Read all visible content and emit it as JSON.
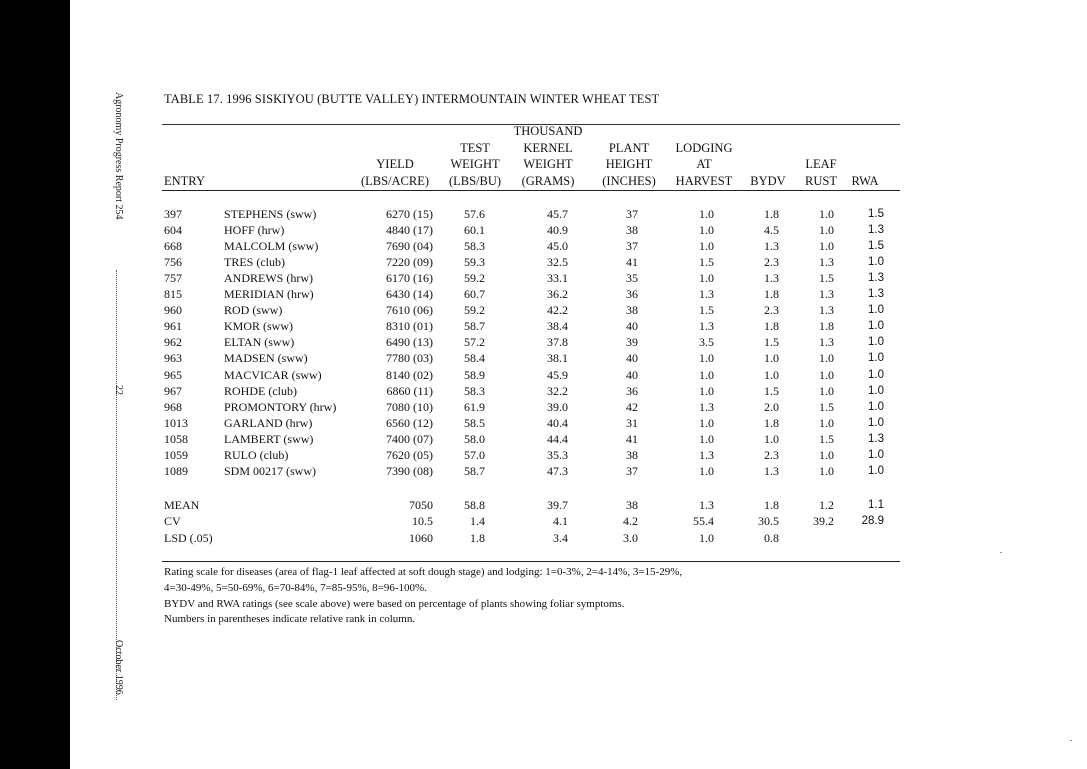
{
  "side": {
    "report": "Agronomy Progress Report 254",
    "page": "22",
    "date": "October 1996"
  },
  "title": "TABLE 17.  1996 SISKIYOU (BUTTE VALLEY) INTERMOUNTAIN WINTER WHEAT TEST",
  "headers": {
    "entry": [
      "ENTRY"
    ],
    "yield": [
      "YIELD",
      "(LBS/ACRE)"
    ],
    "testwt": [
      "TEST",
      "WEIGHT",
      "(LBS/BU)"
    ],
    "tkw": [
      "THOUSAND",
      "KERNEL",
      "WEIGHT",
      "(GRAMS)"
    ],
    "height": [
      "PLANT",
      "HEIGHT",
      "(INCHES)"
    ],
    "lodging": [
      "LODGING",
      "AT",
      "HARVEST"
    ],
    "bydv": [
      "BYDV"
    ],
    "rust": [
      "LEAF",
      "RUST"
    ],
    "rwa": [
      "RWA"
    ]
  },
  "rows": [
    {
      "entry": "397",
      "name": "STEPHENS (sww)",
      "yield": "6270 (15)",
      "testwt": "57.6",
      "tkw": "45.7",
      "height": "37",
      "lodging": "1.0",
      "bydv": "1.8",
      "rust": "1.0",
      "rwa": "1.5"
    },
    {
      "entry": "604",
      "name": "HOFF (hrw)",
      "yield": "4840 (17)",
      "testwt": "60.1",
      "tkw": "40.9",
      "height": "38",
      "lodging": "1.0",
      "bydv": "4.5",
      "rust": "1.0",
      "rwa": "1.3"
    },
    {
      "entry": "668",
      "name": "MALCOLM (sww)",
      "yield": "7690 (04)",
      "testwt": "58.3",
      "tkw": "45.0",
      "height": "37",
      "lodging": "1.0",
      "bydv": "1.3",
      "rust": "1.0",
      "rwa": "1.5"
    },
    {
      "entry": "756",
      "name": "TRES (club)",
      "yield": "7220 (09)",
      "testwt": "59.3",
      "tkw": "32.5",
      "height": "41",
      "lodging": "1.5",
      "bydv": "2.3",
      "rust": "1.3",
      "rwa": "1.0"
    },
    {
      "entry": "757",
      "name": "ANDREWS (hrw)",
      "yield": "6170 (16)",
      "testwt": "59.2",
      "tkw": "33.1",
      "height": "35",
      "lodging": "1.0",
      "bydv": "1.3",
      "rust": "1.5",
      "rwa": "1.3"
    },
    {
      "entry": "815",
      "name": "MERIDIAN (hrw)",
      "yield": "6430 (14)",
      "testwt": "60.7",
      "tkw": "36.2",
      "height": "36",
      "lodging": "1.3",
      "bydv": "1.8",
      "rust": "1.3",
      "rwa": "1.3"
    },
    {
      "entry": "960",
      "name": "ROD (sww)",
      "yield": "7610 (06)",
      "testwt": "59.2",
      "tkw": "42.2",
      "height": "38",
      "lodging": "1.5",
      "bydv": "2.3",
      "rust": "1.3",
      "rwa": "1.0"
    },
    {
      "entry": "961",
      "name": "KMOR (sww)",
      "yield": "8310 (01)",
      "testwt": "58.7",
      "tkw": "38.4",
      "height": "40",
      "lodging": "1.3",
      "bydv": "1.8",
      "rust": "1.8",
      "rwa": "1.0"
    },
    {
      "entry": "962",
      "name": "ELTAN (sww)",
      "yield": "6490 (13)",
      "testwt": "57.2",
      "tkw": "37.8",
      "height": "39",
      "lodging": "3.5",
      "bydv": "1.5",
      "rust": "1.3",
      "rwa": "1.0"
    },
    {
      "entry": "963",
      "name": "MADSEN (sww)",
      "yield": "7780 (03)",
      "testwt": "58.4",
      "tkw": "38.1",
      "height": "40",
      "lodging": "1.0",
      "bydv": "1.0",
      "rust": "1.0",
      "rwa": "1.0"
    },
    {
      "entry": "965",
      "name": "MACVICAR (sww)",
      "yield": "8140 (02)",
      "testwt": "58.9",
      "tkw": "45.9",
      "height": "40",
      "lodging": "1.0",
      "bydv": "1.0",
      "rust": "1.0",
      "rwa": "1.0"
    },
    {
      "entry": "967",
      "name": "ROHDE (club)",
      "yield": "6860 (11)",
      "testwt": "58.3",
      "tkw": "32.2",
      "height": "36",
      "lodging": "1.0",
      "bydv": "1.5",
      "rust": "1.0",
      "rwa": "1.0"
    },
    {
      "entry": "968",
      "name": "PROMONTORY (hrw)",
      "yield": "7080 (10)",
      "testwt": "61.9",
      "tkw": "39.0",
      "height": "42",
      "lodging": "1.3",
      "bydv": "2.0",
      "rust": "1.5",
      "rwa": "1.0"
    },
    {
      "entry": "1013",
      "name": "GARLAND (hrw)",
      "yield": "6560 (12)",
      "testwt": "58.5",
      "tkw": "40.4",
      "height": "31",
      "lodging": "1.0",
      "bydv": "1.8",
      "rust": "1.0",
      "rwa": "1.0"
    },
    {
      "entry": "1058",
      "name": "LAMBERT (sww)",
      "yield": "7400 (07)",
      "testwt": "58.0",
      "tkw": "44.4",
      "height": "41",
      "lodging": "1.0",
      "bydv": "1.0",
      "rust": "1.5",
      "rwa": "1.3"
    },
    {
      "entry": "1059",
      "name": "RULO (club)",
      "yield": "7620 (05)",
      "testwt": "57.0",
      "tkw": "35.3",
      "height": "38",
      "lodging": "1.3",
      "bydv": "2.3",
      "rust": "1.0",
      "rwa": "1.0"
    },
    {
      "entry": "1089",
      "name": "SDM 00217 (sww)",
      "yield": "7390 (08)",
      "testwt": "58.7",
      "tkw": "47.3",
      "height": "37",
      "lodging": "1.0",
      "bydv": "1.3",
      "rust": "1.0",
      "rwa": "1.0"
    }
  ],
  "stats": [
    {
      "label": "MEAN",
      "yield": "7050",
      "testwt": "58.8",
      "tkw": "39.7",
      "height": "38",
      "lodging": "1.3",
      "bydv": "1.8",
      "rust": "1.2",
      "rwa": "1.1"
    },
    {
      "label": "CV",
      "yield": "10.5",
      "testwt": "1.4",
      "tkw": "4.1",
      "height": "4.2",
      "lodging": "55.4",
      "bydv": "30.5",
      "rust": "39.2",
      "rwa": "28.9"
    },
    {
      "label": "LSD (.05)",
      "yield": "1060",
      "testwt": "1.8",
      "tkw": "3.4",
      "height": "3.0",
      "lodging": "1.0",
      "bydv": "0.8",
      "rust": "",
      "rwa": ""
    }
  ],
  "notes": [
    "Rating scale for diseases (area of flag-1 leaf affected at soft dough stage) and lodging: 1=0-3%, 2=4-14%, 3=15-29%,",
    "4=30-49%, 5=50-69%, 6=70-84%, 7=85-95%, 8=96-100%.",
    "BYDV and RWA ratings (see scale above) were based on percentage of plants showing foliar symptoms.",
    "Numbers in parentheses indicate relative rank in column."
  ]
}
